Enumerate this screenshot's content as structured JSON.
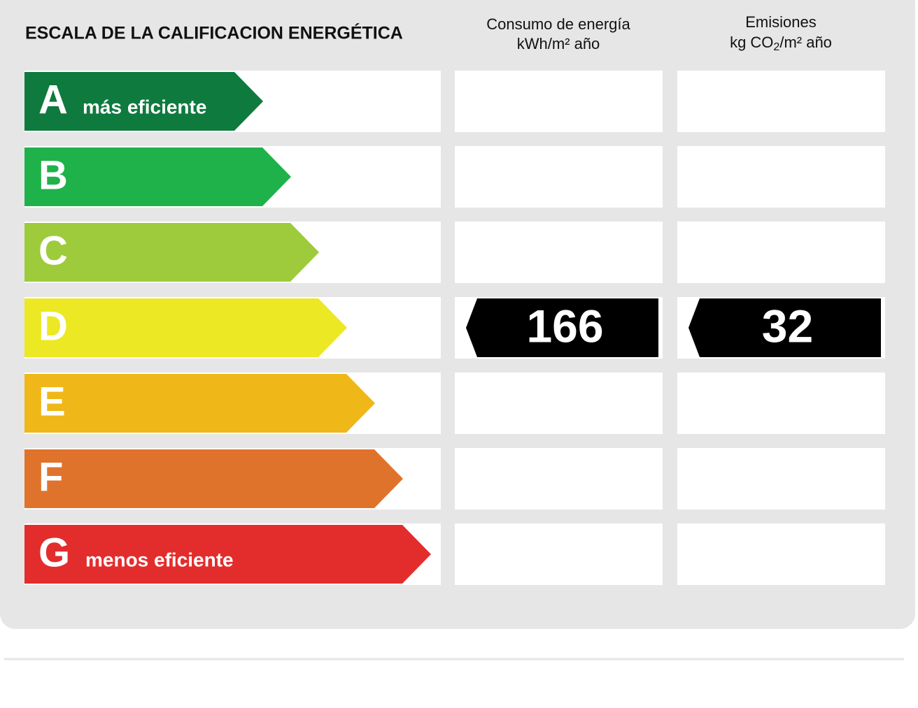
{
  "header": {
    "title": "ESCALA DE LA CALIFICACION ENERGÉTICA",
    "consumption": {
      "title": "Consumo de energía",
      "unit": "kWh/m² año"
    },
    "emissions": {
      "title": "Emisiones",
      "unit_parts": [
        "kg CO",
        "2",
        "/m² año"
      ]
    }
  },
  "ratings": [
    {
      "letter": "A",
      "note": "más eficiente",
      "color": "#0e7a3e"
    },
    {
      "letter": "B",
      "color": "#1fb24a"
    },
    {
      "letter": "C",
      "color": "#9dcb3c"
    },
    {
      "letter": "D",
      "color": "#ece824",
      "consumption": 166,
      "emissions": 32
    },
    {
      "letter": "E",
      "color": "#f0b719"
    },
    {
      "letter": "F",
      "color": "#e0732b"
    },
    {
      "letter": "G",
      "note": "menos eficiente",
      "color": "#e32d2d"
    }
  ]
}
